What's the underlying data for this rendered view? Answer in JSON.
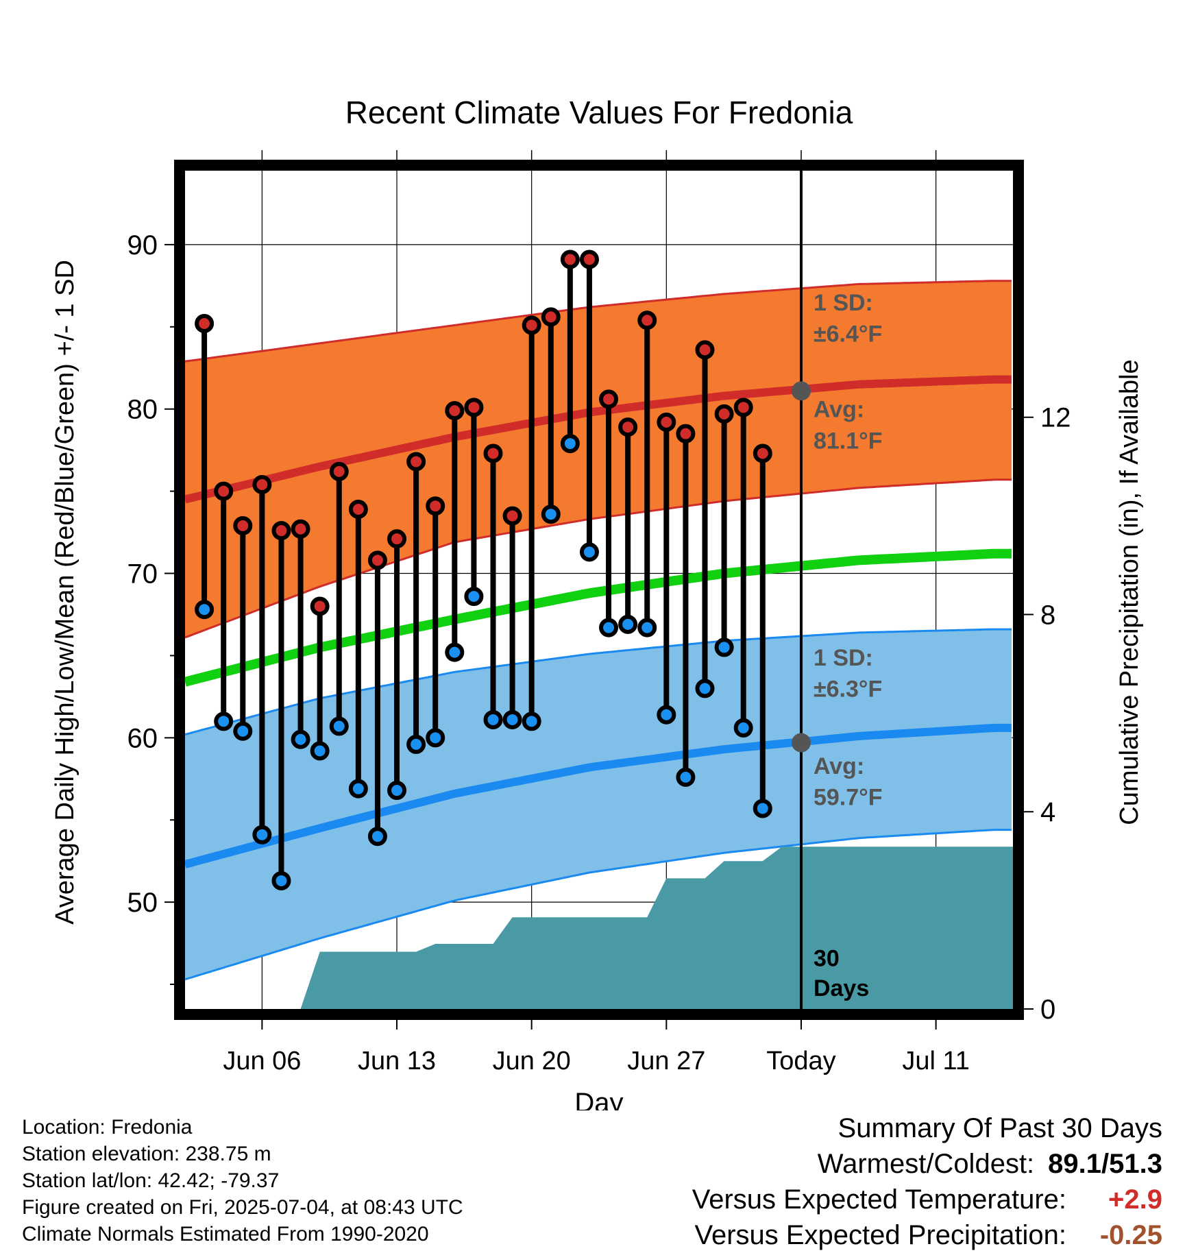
{
  "chart_data": {
    "type": "line",
    "title": "Recent Climate Values For Fredonia",
    "xlabel": "Day",
    "ylabel": "Average Daily High/Low/Mean (Red/Blue/Green) +/- 1 SD",
    "y2label": "Cumulative Precipitation (in), If Available",
    "ylim": [
      43.5,
      94.5
    ],
    "y2lim": [
      0,
      17
    ],
    "xlim": [
      "2025-06-02",
      "2025-07-15"
    ],
    "yticks": [
      50,
      60,
      70,
      80,
      90
    ],
    "y2ticks": [
      0,
      4,
      8,
      12
    ],
    "xticks": [
      {
        "date": "2025-06-06",
        "label": "Jun 06"
      },
      {
        "date": "2025-06-13",
        "label": "Jun 13"
      },
      {
        "date": "2025-06-20",
        "label": "Jun 20"
      },
      {
        "date": "2025-06-27",
        "label": "Jun 27"
      },
      {
        "date": "2025-07-04",
        "label": "Today"
      },
      {
        "date": "2025-07-11",
        "label": "Jul 11"
      }
    ],
    "grid": true,
    "today": "2025-07-04",
    "normals": {
      "x": [
        "2025-06-02",
        "2025-06-09",
        "2025-06-16",
        "2025-06-23",
        "2025-06-30",
        "2025-07-07",
        "2025-07-14"
      ],
      "avg_high": [
        74.5,
        76.5,
        78.3,
        79.8,
        80.8,
        81.5,
        81.8
      ],
      "high_upper": [
        82.9,
        84.0,
        85.1,
        86.2,
        87.0,
        87.6,
        87.8
      ],
      "high_lower": [
        66.1,
        69.2,
        71.9,
        73.3,
        74.4,
        75.2,
        75.7
      ],
      "avg_mean": [
        63.4,
        65.5,
        67.2,
        68.8,
        70.0,
        70.8,
        71.2
      ],
      "avg_low": [
        52.3,
        54.5,
        56.6,
        58.2,
        59.3,
        60.1,
        60.6
      ],
      "low_upper": [
        60.2,
        62.4,
        64.0,
        65.1,
        65.9,
        66.4,
        66.6
      ],
      "low_lower": [
        45.3,
        47.8,
        50.1,
        51.8,
        53.0,
        53.9,
        54.4
      ]
    },
    "daily": {
      "x": [
        "2025-06-03",
        "2025-06-04",
        "2025-06-05",
        "2025-06-06",
        "2025-06-07",
        "2025-06-08",
        "2025-06-09",
        "2025-06-10",
        "2025-06-11",
        "2025-06-12",
        "2025-06-13",
        "2025-06-14",
        "2025-06-15",
        "2025-06-16",
        "2025-06-17",
        "2025-06-18",
        "2025-06-19",
        "2025-06-20",
        "2025-06-21",
        "2025-06-22",
        "2025-06-23",
        "2025-06-24",
        "2025-06-25",
        "2025-06-26",
        "2025-06-27",
        "2025-06-28",
        "2025-06-29",
        "2025-06-30",
        "2025-07-01",
        "2025-07-02",
        "2025-07-03"
      ],
      "high": [
        85.2,
        75.0,
        72.9,
        75.4,
        72.6,
        72.7,
        68.0,
        76.2,
        73.9,
        70.8,
        72.1,
        76.8,
        74.1,
        79.9,
        80.1,
        77.3,
        73.5,
        85.1,
        85.6,
        89.1,
        89.1,
        80.6,
        78.9,
        85.4,
        79.2,
        78.5,
        83.6,
        79.7,
        80.1,
        77.3,
        null
      ],
      "low": [
        67.8,
        61.0,
        60.4,
        54.1,
        51.3,
        59.9,
        59.2,
        60.7,
        56.9,
        54.0,
        56.8,
        59.6,
        60.0,
        65.2,
        68.6,
        61.1,
        61.1,
        61.0,
        73.6,
        77.9,
        71.3,
        66.7,
        66.9,
        66.7,
        61.4,
        57.6,
        63.0,
        65.5,
        60.6,
        55.7,
        null
      ]
    },
    "precip": {
      "x": [
        "2025-06-08",
        "2025-06-09",
        "2025-06-14",
        "2025-06-15",
        "2025-06-18",
        "2025-06-19",
        "2025-06-26",
        "2025-06-27",
        "2025-06-29",
        "2025-06-30",
        "2025-07-02",
        "2025-07-03",
        "2025-07-15"
      ],
      "cum": [
        0.0,
        1.16,
        1.16,
        1.32,
        1.32,
        1.86,
        1.86,
        2.65,
        2.65,
        3.0,
        3.0,
        3.29,
        3.29
      ]
    },
    "annotations": {
      "high_sd_1": "1 SD:",
      "high_sd_2": "±6.4°F",
      "high_avg_1": "Avg:",
      "high_avg_2": "81.1°F",
      "low_sd_1": "1 SD:",
      "low_sd_2": "±6.3°F",
      "low_avg_1": "Avg:",
      "low_avg_2": "59.7°F",
      "days_1": "30",
      "days_2": "Days",
      "today_high_avg": 81.1,
      "today_low_avg": 59.7
    },
    "colors": {
      "high_band": "#f47a30",
      "high_line": "#d02c2a",
      "mean_line": "#10d010",
      "low_band": "#80c0e8",
      "low_line": "#1a8af0",
      "precip": "#4a9aa6",
      "high_dot": "#d02c2a",
      "low_dot": "#1a90f0",
      "annotation": "#555555"
    }
  },
  "info": {
    "location": "Location: Fredonia",
    "elevation": "Station elevation: 238.75 m",
    "latlon": "Station lat/lon: 42.42; -79.37",
    "created": "Figure created on Fri, 2025-07-04, at 08:43 UTC",
    "normals": "Climate Normals Estimated From 1990-2020"
  },
  "summary": {
    "title": "Summary Of Past 30 Days",
    "warm_cold_label": "Warmest/Coldest:",
    "warm_cold_value": "89.1/51.3",
    "temp_label": "Versus Expected Temperature:",
    "temp_value": "+2.9",
    "temp_color": "#d02c2a",
    "precip_label": "Versus Expected Precipitation:",
    "precip_value": "-0.25",
    "precip_color": "#a0522d"
  }
}
